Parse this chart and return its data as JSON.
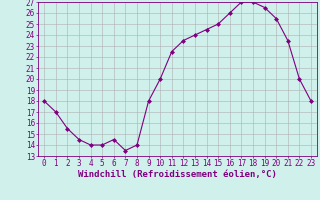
{
  "x": [
    0,
    1,
    2,
    3,
    4,
    5,
    6,
    7,
    8,
    9,
    10,
    11,
    12,
    13,
    14,
    15,
    16,
    17,
    18,
    19,
    20,
    21,
    22,
    23
  ],
  "y": [
    18,
    17,
    15.5,
    14.5,
    14,
    14,
    14.5,
    13.5,
    14,
    18,
    20,
    22.5,
    23.5,
    24,
    24.5,
    25,
    26,
    27,
    27,
    26.5,
    25.5,
    23.5,
    20,
    18
  ],
  "line_color": "#800080",
  "marker": "D",
  "marker_size": 2,
  "bg_color": "#cff0eb",
  "grid_color": "#b0b0b0",
  "xlabel": "Windchill (Refroidissement éolien,°C)",
  "ylim": [
    13,
    27
  ],
  "xlim": [
    -0.5,
    23.5
  ],
  "yticks": [
    13,
    14,
    15,
    16,
    17,
    18,
    19,
    20,
    21,
    22,
    23,
    24,
    25,
    26,
    27
  ],
  "xticks": [
    0,
    1,
    2,
    3,
    4,
    5,
    6,
    7,
    8,
    9,
    10,
    11,
    12,
    13,
    14,
    15,
    16,
    17,
    18,
    19,
    20,
    21,
    22,
    23
  ],
  "axis_color": "#800080",
  "tick_color": "#800080",
  "label_color": "#800080",
  "font_size_xlabel": 6.5,
  "font_size_ticks": 5.5
}
